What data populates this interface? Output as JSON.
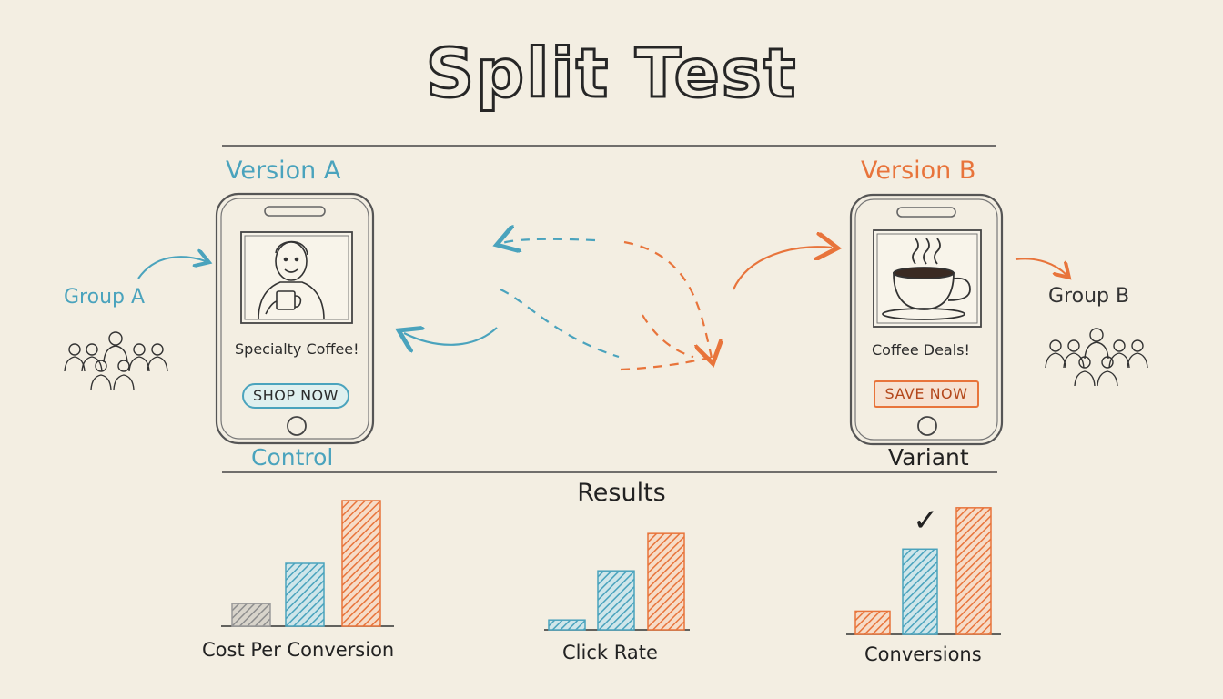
{
  "title": "Split Test",
  "version_a": {
    "heading": "Version A",
    "group": "Group A",
    "phone_text": "Specialty Coffee!",
    "button": "SHOP NOW",
    "role": "Control"
  },
  "version_b": {
    "heading": "Version B",
    "group": "Group B",
    "phone_text": "Coffee Deals!",
    "button": "SAVE NOW",
    "role": "Variant"
  },
  "icons": {
    "group_a": "people-group-icon",
    "group_b": "people-group-icon",
    "phone_a_image": "person-with-coffee-cup-illustration",
    "phone_b_image": "steaming-coffee-cup-illustration",
    "winner": "checkmark-icon"
  },
  "colors": {
    "version_a": "#4aa3bd",
    "version_b": "#e8743b",
    "neutral": "#9a9a9a"
  },
  "results": {
    "heading": "Results",
    "check": "✓",
    "winner_chart": "Conversions"
  },
  "chart_data": [
    {
      "type": "bar",
      "title": "Cost Per Conversion",
      "values": [
        0.18,
        0.5,
        1.0
      ],
      "colors": [
        "#9a9a9a",
        "#4aa3bd",
        "#e8743b"
      ]
    },
    {
      "type": "bar",
      "title": "Click Rate",
      "values": [
        0.1,
        0.6,
        0.98
      ],
      "colors": [
        "#4aa3bd",
        "#4aa3bd",
        "#e8743b"
      ]
    },
    {
      "type": "bar",
      "title": "Conversions",
      "values": [
        0.18,
        0.66,
        0.98
      ],
      "colors": [
        "#e8743b",
        "#4aa3bd",
        "#e8743b"
      ]
    }
  ]
}
